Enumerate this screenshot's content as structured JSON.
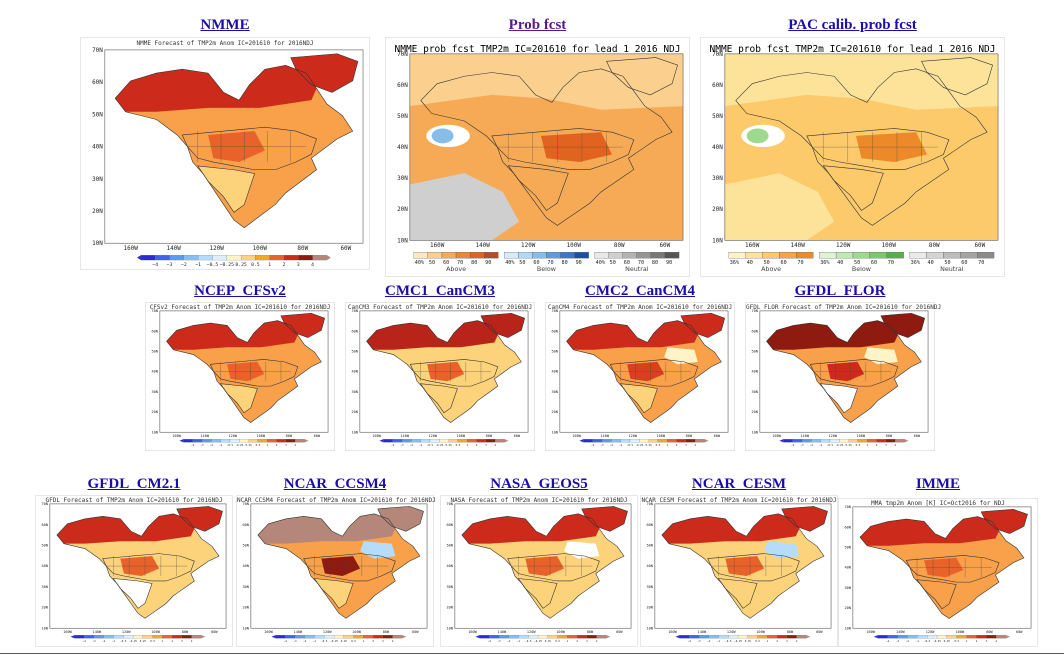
{
  "top": [
    {
      "id": "nmme",
      "title": "NMME",
      "visited": false,
      "caption": "NMME Forecast of TMP2m Anom  IC=201610 for 2016NDJ",
      "type": "anom",
      "style": "main",
      "lat_labels": [
        "70N",
        "60N",
        "50N",
        "40N",
        "30N",
        "20N",
        "10N"
      ],
      "lon_labels": [
        "160W",
        "140W",
        "120W",
        "100W",
        "80W",
        "60W"
      ],
      "legend_labels": [
        "−4",
        "−3",
        "−2",
        "−1",
        "−0.5",
        "−0.25",
        "0.25",
        "0.5",
        "1",
        "2",
        "3",
        "4"
      ]
    },
    {
      "id": "prob",
      "title": "Prob fcst",
      "visited": true,
      "caption": "NMME prob fcst TMP2m IC=201610 for lead 1 2016 NDJ",
      "type": "prob",
      "style": "prob",
      "lat_labels": [
        "70N",
        "60N",
        "50N",
        "40N",
        "30N",
        "20N",
        "10N"
      ],
      "lon_labels": [
        "160W",
        "140W",
        "120W",
        "100W",
        "80W",
        "60W"
      ],
      "legend_groups": [
        {
          "label": "Above",
          "ticks": [
            "40%",
            "50",
            "60",
            "70",
            "80",
            "90"
          ]
        },
        {
          "label": "Below",
          "ticks": [
            "40%",
            "50",
            "60",
            "70",
            "80",
            "90"
          ]
        },
        {
          "label": "Neutral",
          "ticks": [
            "40%",
            "50",
            "60",
            "70",
            "80",
            "90"
          ]
        }
      ]
    },
    {
      "id": "pac",
      "title": "PAC calib. prob fcst",
      "visited": false,
      "caption": "NMME prob fcst TMP2m IC=201610 for lead 1 2016 NDJ",
      "type": "prob",
      "style": "pac",
      "lat_labels": [
        "70N",
        "60N",
        "50N",
        "40N",
        "30N",
        "20N",
        "10N"
      ],
      "lon_labels": [
        "160W",
        "140W",
        "120W",
        "100W",
        "80W",
        "60W"
      ],
      "legend_groups": [
        {
          "label": "Above",
          "ticks": [
            "36%",
            "40",
            "50",
            "60",
            "70"
          ]
        },
        {
          "label": "Below",
          "ticks": [
            "36%",
            "40",
            "50",
            "60",
            "70"
          ]
        },
        {
          "label": "Neutral",
          "ticks": [
            "36%",
            "40",
            "50",
            "60",
            "70"
          ]
        }
      ]
    }
  ],
  "middle": [
    {
      "id": "cfsv2",
      "title": "NCEP_CFSv2",
      "caption": "CFSv2 Forecast of TMP2m Anom  IC=201610 for 2016NDJ",
      "style": "cfs"
    },
    {
      "id": "cancm3",
      "title": "CMC1_CanCM3",
      "caption": "CanCM3 Forecast of TMP2m Anom  IC=201610 for 2016NDJ",
      "style": "cm3"
    },
    {
      "id": "cancm4",
      "title": "CMC2_CanCM4",
      "caption": "CanCM4 Forecast of TMP2m Anom  IC=201610 for 2016NDJ",
      "style": "cm4"
    },
    {
      "id": "flor",
      "title": "GFDL_FLOR",
      "caption": "GFDL FLOR Forecast of TMP2m Anom  IC=201610 for 2016NDJ",
      "style": "flor"
    }
  ],
  "bottom": [
    {
      "id": "cm21",
      "title": "GFDL_CM2.1",
      "caption": "GFDL Forecast of TMP2m Anom  IC=201610 for 2016NDJ",
      "style": "cm21"
    },
    {
      "id": "ccsm4",
      "title": "NCAR_CCSM4",
      "caption": "NCAR CCSM4 Forecast of TMP2m Anom  IC=201610 for 2016NDJ",
      "style": "ccsm4"
    },
    {
      "id": "geos5",
      "title": "NASA_GEOS5",
      "caption": "NASA Forecast of TMP2m Anom  IC=201610 for 2016NDJ",
      "style": "geos"
    },
    {
      "id": "cesm",
      "title": "NCAR_CESM",
      "caption": "NCAR CESM Forecast of TMP2m Anom  IC=201610 for 2016NDJ",
      "style": "cesm"
    },
    {
      "id": "imme",
      "title": "IMME",
      "caption": "MMA tmp2m Anom [K]  IC=Oct2016 for NDJ",
      "style": "imme"
    }
  ],
  "small_lat_labels": [
    "70N",
    "60N",
    "50N",
    "40N",
    "30N",
    "20N",
    "10N"
  ],
  "small_lon_labels": [
    "160W",
    "140W",
    "120W",
    "100W",
    "80W",
    "60W"
  ],
  "small_legend_labels": [
    "−4",
    "−3",
    "−2",
    "−1",
    "−0.5",
    "−0.25",
    "0.25",
    "0.5",
    "1",
    "2",
    "3",
    "4"
  ],
  "colors": {
    "link": "#1a0dab",
    "visited": "#551a8b",
    "anom": [
      "#2b2bd6",
      "#3f63f0",
      "#5f97f5",
      "#86bdf7",
      "#b5dcfb",
      "#dcefff",
      "#fff4c8",
      "#fcd27a",
      "#f5a623",
      "#e8622a",
      "#cc2b1c",
      "#8e1a10",
      "#b5877a"
    ],
    "prob_above": [
      "#fde8c4",
      "#fbcf8e",
      "#f6aa55",
      "#ee8730",
      "#e06420",
      "#b84a2c"
    ],
    "prob_below": [
      "#d6ebf7",
      "#b2d8f3",
      "#86bde9",
      "#5f9bdc",
      "#3c76c8",
      "#1c4ea8"
    ],
    "prob_neutral": [
      "#e8e8e8",
      "#cfcfcf",
      "#b3b3b3",
      "#959595",
      "#777777",
      "#555555"
    ],
    "pac_above": [
      "#fdf2c8",
      "#fde29a",
      "#fcc96b",
      "#f5a440",
      "#ec8a2a"
    ],
    "pac_below": [
      "#dcf3d6",
      "#bfe8b5",
      "#9fd98e",
      "#7cc86b",
      "#55b04a"
    ],
    "pac_neutral": [
      "#eaeaea",
      "#d4d4d4",
      "#bcbcbc",
      "#a3a3a3",
      "#8a8a8a"
    ]
  }
}
